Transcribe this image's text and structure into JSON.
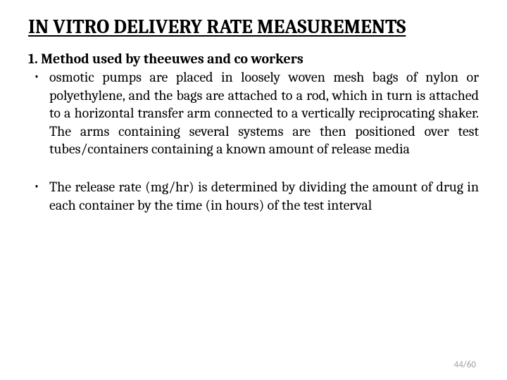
{
  "slide": {
    "title": "IN VITRO DELIVERY RATE MEASUREMENTS",
    "subheading": "1. Method used by theeuwes and co workers",
    "bullets": [
      "osmotic pumps are placed in loosely woven mesh bags of nylon or polyethylene, and the bags are attached to a rod, which in turn is attached to a horizontal transfer arm connected to a vertically reciprocating shaker. The arms containing several systems are then positioned over test tubes/containers containing a known amount of release media",
      "The release rate (mg/hr) is determined by dividing the amount of drug in each container by the time (in hours) of the test interval"
    ],
    "page": "44/60"
  },
  "styles": {
    "background_color": "#ffffff",
    "text_color": "#000000",
    "title_fontsize": 28,
    "subheading_fontsize": 20,
    "body_fontsize": 20,
    "page_num_color": "#a0a0a0"
  }
}
